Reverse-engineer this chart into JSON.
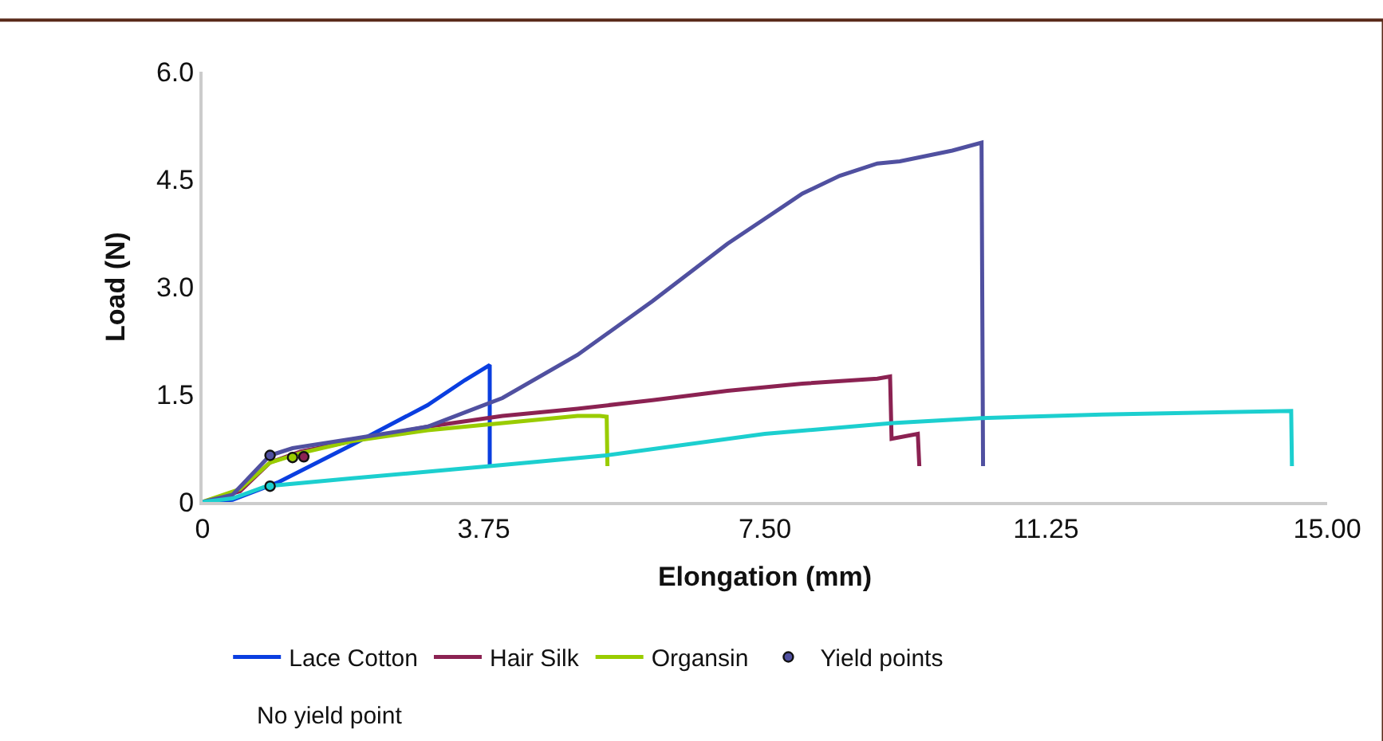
{
  "chart_data": {
    "type": "line",
    "xlabel": "Elongation (mm)",
    "ylabel": "Load (N)",
    "xlim": [
      0,
      15
    ],
    "ylim": [
      0,
      6
    ],
    "xticks": [
      0,
      3.75,
      {
        "value": 7.5,
        "label": "7.50"
      },
      11.25,
      {
        "value": 15,
        "label": "15.00"
      }
    ],
    "yticks": [
      0,
      1.5,
      {
        "value": 3,
        "label": "3.0"
      },
      4.5,
      {
        "value": 6,
        "label": "6.0"
      }
    ],
    "legend": "bottom",
    "marker": "none",
    "line_style": "solid",
    "annotations": [
      "No yield point"
    ],
    "series": [
      {
        "name": "Lace Cotton",
        "color": "#0a3ee0",
        "x": [
          0,
          0.4,
          1.0,
          2.0,
          3.0,
          3.5,
          3.83,
          3.83
        ],
        "values": [
          0,
          0.03,
          0.27,
          0.8,
          1.35,
          1.7,
          1.91,
          0.5
        ]
      },
      {
        "name": "Hair Silk",
        "color": "#8b2252",
        "x": [
          0,
          0.5,
          0.9,
          1.3,
          2,
          3,
          4,
          5,
          6,
          7,
          8,
          9,
          9.17,
          9.19,
          9.54,
          9.56
        ],
        "values": [
          0,
          0.15,
          0.55,
          0.7,
          0.85,
          1.05,
          1.2,
          1.3,
          1.42,
          1.55,
          1.65,
          1.72,
          1.75,
          0.88,
          0.95,
          0.5
        ]
      },
      {
        "name": "Organsin",
        "color": "#99cc00",
        "x": [
          0,
          0.5,
          0.9,
          1.3,
          2,
          3,
          4,
          4.5,
          5,
          5.3,
          5.39,
          5.4
        ],
        "values": [
          0,
          0.18,
          0.55,
          0.68,
          0.85,
          1.0,
          1.1,
          1.15,
          1.2,
          1.2,
          1.19,
          0.5
        ]
      },
      {
        "color": "#5050a0",
        "x": [
          0,
          0.4,
          0.9,
          1.2,
          2,
          3,
          4,
          5,
          6,
          7,
          7.5,
          8,
          8.5,
          9,
          9.3,
          10,
          10.39,
          10.41
        ],
        "values": [
          0,
          0.1,
          0.65,
          0.75,
          0.88,
          1.05,
          1.45,
          2.05,
          2.8,
          3.6,
          3.95,
          4.3,
          4.55,
          4.72,
          4.75,
          4.9,
          5.01,
          0.5
        ]
      },
      {
        "color": "#1ccfcf",
        "x": [
          0,
          0.4,
          0.85,
          2,
          3.83,
          5.39,
          7.5,
          9.2,
          10.39,
          12,
          14.52,
          14.53
        ],
        "values": [
          0,
          0.05,
          0.22,
          0.33,
          0.5,
          0.65,
          0.95,
          1.1,
          1.17,
          1.22,
          1.27,
          0.5
        ]
      },
      {
        "name": "Yield points",
        "type": "scatter",
        "marker": "circle",
        "color": "#8b2252",
        "colors": [
          "#5050a0",
          "#99cc00",
          "#8b2252",
          "#1ccfcf"
        ],
        "x": [
          0.9,
          1.2,
          1.35,
          0.9
        ],
        "values": [
          0.65,
          0.62,
          0.63,
          0.22
        ]
      }
    ]
  }
}
